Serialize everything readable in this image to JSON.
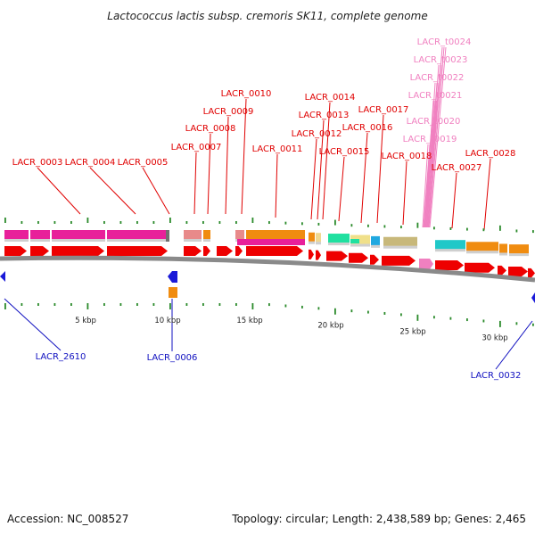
{
  "title": "Lactococcus lactis subsp. cremoris SK11, complete genome",
  "footer": {
    "accession": "Accession: NC_008527",
    "topology": "Topology: circular; Length: 2,438,589 bp; Genes: 2,465"
  },
  "colors": {
    "forward_label": "#e00000",
    "reverse_label": "#1010c0",
    "rna_label": "#f080c0",
    "cds_arrow": "#ee0000",
    "rna_arrow": "#f080c0",
    "reverse_arrow": "#1a1ad8",
    "backbone": "#8a8a8a",
    "tick": "#2a8a2a"
  },
  "scale": {
    "ticks": [
      {
        "label": "5 kbp"
      },
      {
        "label": "10 kbp"
      },
      {
        "label": "15 kbp"
      },
      {
        "label": "20 kbp"
      },
      {
        "label": "25 kbp"
      },
      {
        "label": "30 kbp"
      }
    ]
  },
  "forward_genes": [
    {
      "id": "LACR_0003",
      "cog": "#e8209a"
    },
    {
      "id": "LACR_0004",
      "cog": "#e8209a"
    },
    {
      "id": "LACR_0005",
      "cog": "#e8209a"
    },
    {
      "id": "LACR_0007",
      "cog": "#e88a8a"
    },
    {
      "id": "LACR_0008",
      "cog": "#f08c10"
    },
    {
      "id": "LACR_0009",
      "cog": ""
    },
    {
      "id": "LACR_0010",
      "cog": "#e88a8a"
    },
    {
      "id": "LACR_0011",
      "cog": "#f08c10"
    },
    {
      "id": "LACR_0012",
      "cog": "#f08c10"
    },
    {
      "id": "LACR_0013",
      "cog": "#f0d890"
    },
    {
      "id": "LACR_0014",
      "cog": "#f0d890"
    },
    {
      "id": "LACR_0015",
      "cog": "#20e0a0"
    },
    {
      "id": "LACR_0016",
      "cog": "#f0e08a"
    },
    {
      "id": "LACR_0017",
      "cog": "#20a8e0"
    },
    {
      "id": "LACR_0018",
      "cog": "#c8b87a"
    },
    {
      "id": "LACR_0027",
      "cog": "#20c8c8"
    },
    {
      "id": "LACR_0028",
      "cog": "#f08c10"
    }
  ],
  "rna_genes": [
    {
      "id": "LACR_t0019"
    },
    {
      "id": "LACR_t0020"
    },
    {
      "id": "LACR_t0021"
    },
    {
      "id": "LACR_t0022"
    },
    {
      "id": "LACR_t0023"
    },
    {
      "id": "LACR_t0024"
    }
  ],
  "reverse_genes": [
    {
      "id": "LACR_2610"
    },
    {
      "id": "LACR_0006"
    },
    {
      "id": "LACR_0032"
    }
  ]
}
